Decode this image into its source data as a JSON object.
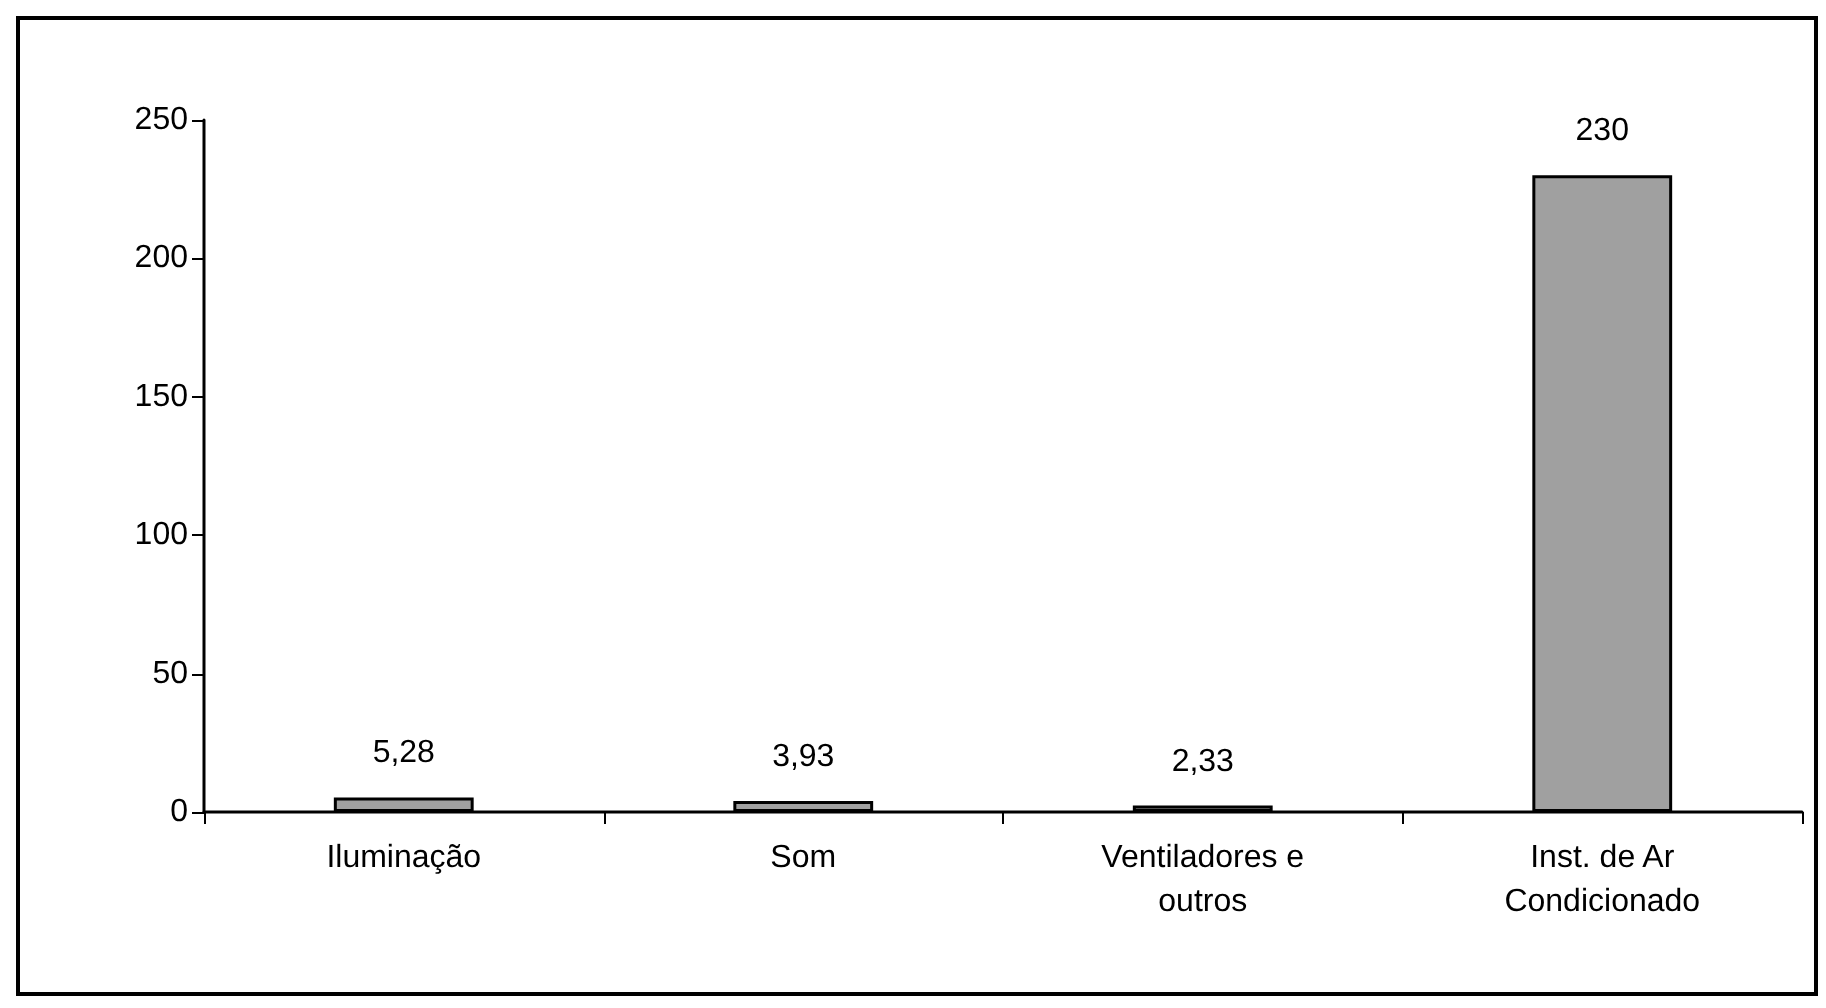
{
  "chart_data": {
    "type": "bar",
    "categories": [
      "Iluminação",
      "Som",
      "Ventiladores e\noutros",
      "Inst. de Ar\nCondicionado"
    ],
    "values": [
      5.28,
      3.93,
      2.33,
      230
    ],
    "value_labels": [
      "5,28",
      "3,93",
      "2,33",
      "230"
    ],
    "color": "#a0a0a0",
    "ylim": [
      0,
      250
    ],
    "yticks": [
      0,
      50,
      100,
      150,
      200,
      250
    ],
    "grid": false
  }
}
